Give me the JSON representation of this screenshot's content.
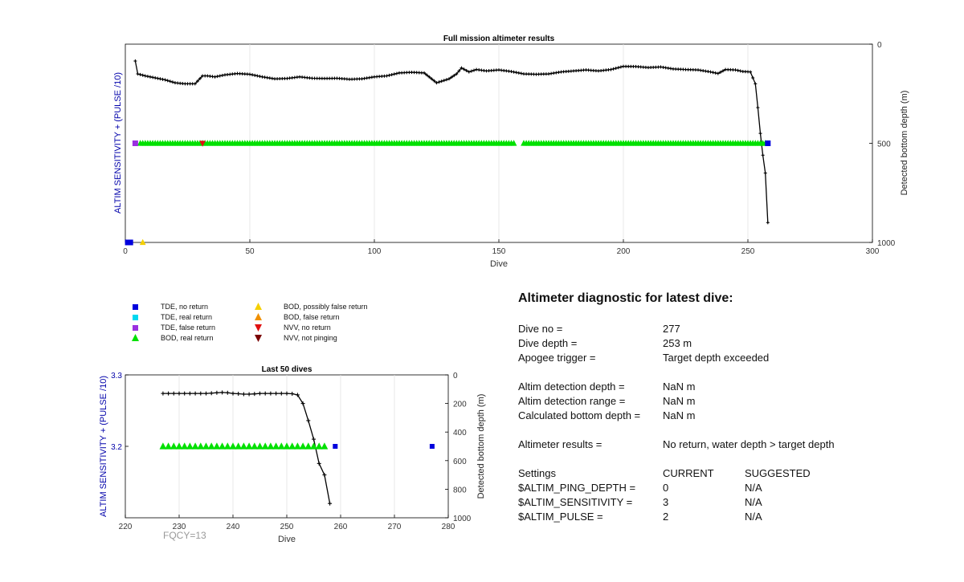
{
  "chart_data": [
    {
      "type": "line",
      "title": "Full mission altimeter results",
      "xlabel": "Dive",
      "ylabel": "ALTIM SENSITIVITY + (PULSE /10)",
      "y2label": "Detected bottom depth (m)",
      "xlim": [
        0,
        300
      ],
      "x_ticks": [
        0,
        50,
        100,
        150,
        200,
        250,
        300
      ],
      "y2lim": [
        0,
        1000
      ],
      "y2_ticks": [
        0,
        500,
        1000
      ],
      "y2_reversed": true,
      "grid": "vertical",
      "series": [
        {
          "name": "Detected bottom depth",
          "axis": "right",
          "marker": "plus",
          "color": "#000000",
          "x": [
            4,
            5,
            8,
            12,
            16,
            20,
            24,
            28,
            31,
            33,
            36,
            40,
            45,
            50,
            55,
            60,
            65,
            70,
            75,
            80,
            85,
            90,
            95,
            100,
            105,
            110,
            115,
            120,
            125,
            130,
            133,
            135,
            138,
            141,
            145,
            150,
            155,
            160,
            165,
            170,
            175,
            180,
            185,
            190,
            195,
            200,
            205,
            210,
            215,
            220,
            225,
            230,
            235,
            238,
            241,
            245,
            248,
            251,
            253,
            254,
            255,
            256,
            257,
            258
          ],
          "y": [
            85,
            150,
            160,
            170,
            180,
            195,
            200,
            200,
            160,
            160,
            165,
            155,
            148,
            152,
            165,
            175,
            173,
            165,
            172,
            173,
            172,
            177,
            175,
            165,
            160,
            145,
            142,
            145,
            195,
            175,
            150,
            120,
            140,
            128,
            135,
            130,
            138,
            150,
            152,
            150,
            140,
            135,
            130,
            135,
            128,
            112,
            113,
            118,
            115,
            125,
            128,
            130,
            140,
            148,
            128,
            130,
            138,
            140,
            200,
            320,
            450,
            560,
            650,
            900
          ]
        },
        {
          "name": "BOD, real return",
          "axis": "right",
          "marker": "triangle-up",
          "color": "#00e000",
          "segments": [
            [
              6,
              156
            ],
            [
              160,
              257
            ]
          ],
          "y": 500
        },
        {
          "name": "TDE, no return",
          "marker": "square",
          "color": "#0000dd",
          "points": [
            [
              1,
              1000
            ],
            [
              2,
              1000
            ],
            [
              258,
              500
            ]
          ]
        },
        {
          "name": "TDE, false return",
          "marker": "square",
          "color": "#9b30e0",
          "points": [
            [
              4,
              500
            ]
          ]
        },
        {
          "name": "BOD, possibly false return",
          "marker": "triangle-up",
          "color": "#f5d000",
          "points": [
            [
              7,
              1000
            ]
          ]
        },
        {
          "name": "NVV, no return",
          "marker": "triangle-down",
          "color": "#e01010",
          "points": [
            [
              31,
              500
            ]
          ]
        }
      ]
    },
    {
      "type": "line",
      "title": "Last 50 dives",
      "xlabel": "Dive",
      "ylabel": "ALTIM SENSITIVITY + (PULSE /10)",
      "y2label": "Detected bottom depth (m)",
      "xlim": [
        220,
        280
      ],
      "x_ticks": [
        220,
        230,
        240,
        250,
        260,
        270,
        280
      ],
      "y_ticks": [
        "3.3",
        "3.2"
      ],
      "y2lim": [
        0,
        1000
      ],
      "y2_ticks": [
        0,
        200,
        400,
        600,
        800,
        1000
      ],
      "y2_reversed": true,
      "grid": "vertical",
      "annotation": "FQCY=13",
      "series": [
        {
          "name": "Detected bottom depth",
          "axis": "right",
          "marker": "plus",
          "color": "#000000",
          "x": [
            227,
            228,
            229,
            230,
            231,
            232,
            233,
            234,
            235,
            236,
            237,
            238,
            239,
            240,
            241,
            242,
            243,
            244,
            245,
            246,
            247,
            248,
            249,
            250,
            251,
            252,
            253,
            254,
            255,
            256,
            257,
            258
          ],
          "y": [
            130,
            130,
            130,
            130,
            130,
            130,
            130,
            130,
            130,
            128,
            125,
            123,
            125,
            130,
            132,
            135,
            135,
            133,
            130,
            130,
            130,
            130,
            130,
            130,
            132,
            140,
            200,
            320,
            450,
            620,
            700,
            900
          ]
        },
        {
          "name": "BOD, real return",
          "axis": "right",
          "marker": "triangle-up",
          "color": "#00e000",
          "segments": [
            [
              227,
              257
            ]
          ],
          "y": 500
        },
        {
          "name": "TDE, no return",
          "marker": "square",
          "color": "#0000dd",
          "points": [
            [
              259,
              500
            ],
            [
              277,
              500
            ]
          ]
        }
      ]
    }
  ],
  "legend": [
    {
      "label": "TDE, no return",
      "shape": "square",
      "color": "#0000dd"
    },
    {
      "label": "TDE, real return",
      "shape": "square",
      "color": "#00d8f0"
    },
    {
      "label": "TDE, false return",
      "shape": "square",
      "color": "#9b30e0"
    },
    {
      "label": "BOD, real return",
      "shape": "triangle-up",
      "color": "#00e000"
    },
    {
      "label": "BOD, possibly false return",
      "shape": "triangle-up",
      "color": "#f5d000"
    },
    {
      "label": "BOD, false return",
      "shape": "triangle-up",
      "color": "#f09000"
    },
    {
      "label": "NVV, no return",
      "shape": "triangle-down",
      "color": "#e01010"
    },
    {
      "label": "NVV, not pinging",
      "shape": "triangle-down",
      "color": "#7a0000"
    }
  ],
  "diagnostic": {
    "title": "Altimeter diagnostic for latest dive:",
    "dive_no_label": "Dive no =",
    "dive_no": "277",
    "dive_depth_label": "Dive depth =",
    "dive_depth": "253 m",
    "apogee_label": "Apogee trigger =",
    "apogee": "Target depth exceeded",
    "det_depth_label": "Altim detection depth =",
    "det_depth": "NaN m",
    "det_range_label": "Altim detection range =",
    "det_range": "NaN m",
    "calc_depth_label": "Calculated bottom depth =",
    "calc_depth": "NaN m",
    "results_label": "Altimeter results =",
    "results": "No return, water depth > target depth",
    "settings_label": "Settings",
    "current_label": "CURRENT",
    "suggested_label": "SUGGESTED",
    "settings": [
      {
        "name": "$ALTIM_PING_DEPTH =",
        "current": "0",
        "suggested": "N/A"
      },
      {
        "name": "$ALTIM_SENSITIVITY =",
        "current": "3",
        "suggested": "N/A"
      },
      {
        "name": "$ALTIM_PULSE =",
        "current": "2",
        "suggested": "N/A"
      }
    ]
  },
  "colors": {
    "axis_label_left": "#0000aa",
    "annotation": "#999999",
    "grid": "#e2e2e2"
  }
}
